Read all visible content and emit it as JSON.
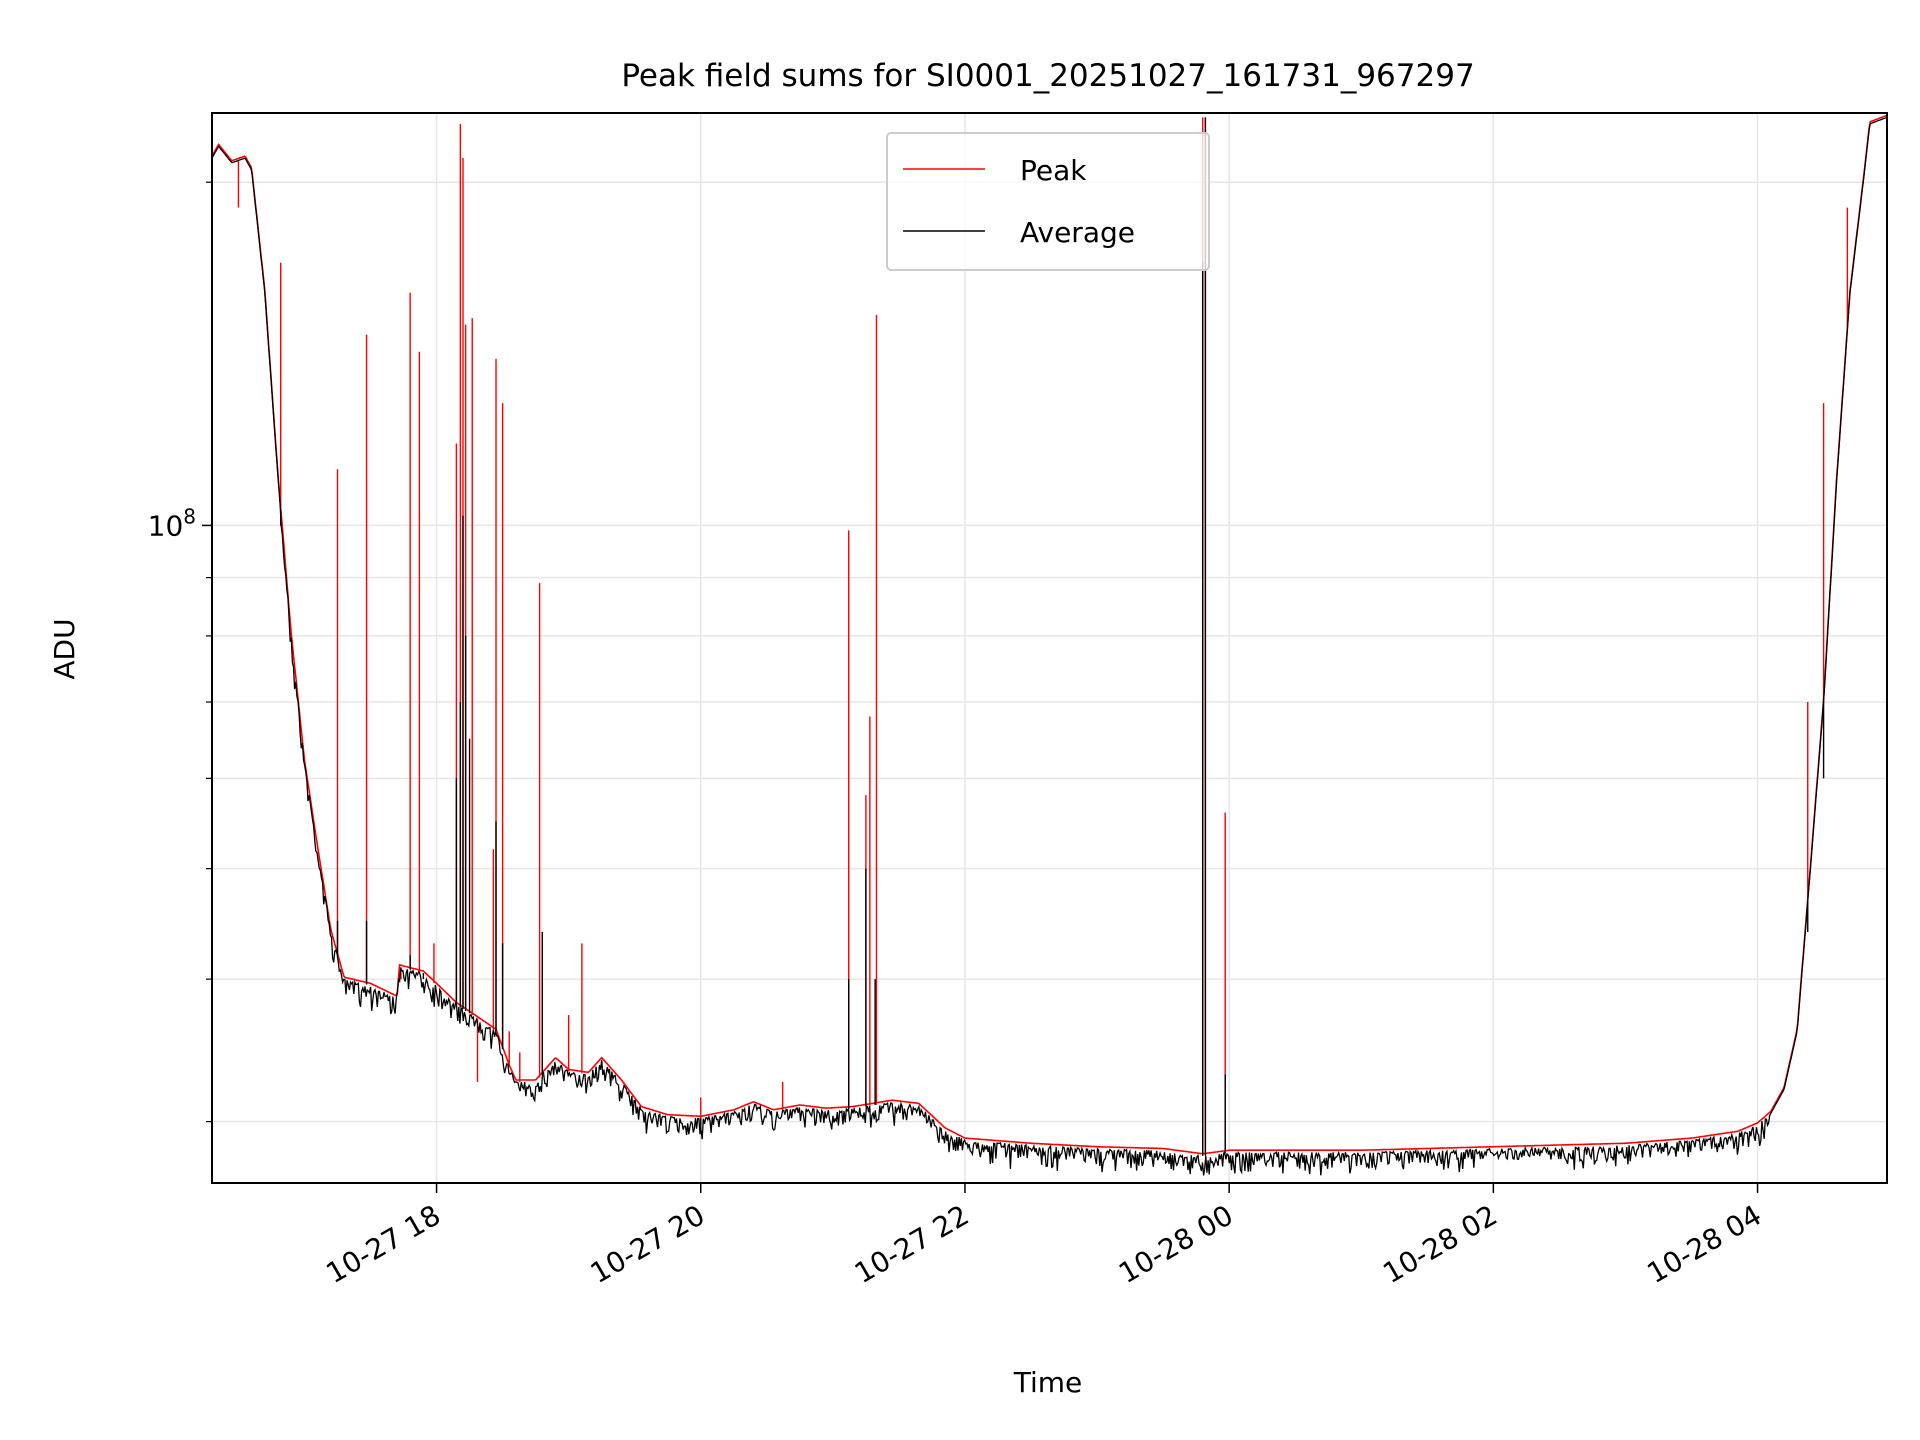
{
  "chart_data": {
    "type": "line",
    "title": "Peak field sums for SI0001_20251027_161731_967297",
    "xlabel": "Time",
    "ylabel": "ADU",
    "yscale": "log",
    "ylim": [
      26500000,
      230000000
    ],
    "xlim": [
      16.3,
      28.98
    ],
    "grid": true,
    "x_unit": "hours since 10-27 00:00",
    "x_ticks": [
      {
        "value": 18,
        "label": "10-27 18"
      },
      {
        "value": 20,
        "label": "10-27 20"
      },
      {
        "value": 22,
        "label": "10-27 22"
      },
      {
        "value": 24,
        "label": "10-28 00"
      },
      {
        "value": 26,
        "label": "10-28 02"
      },
      {
        "value": 28,
        "label": "10-28 04"
      }
    ],
    "y_major_ticks": [
      {
        "value": 100000000,
        "label_base": "10",
        "label_exp": "8"
      }
    ],
    "y_minor_ticks": [
      30000000,
      40000000,
      50000000,
      60000000,
      70000000,
      80000000,
      90000000,
      200000000
    ],
    "legend": {
      "position": "top-center",
      "entries": [
        "Peak",
        "Average"
      ]
    },
    "series": [
      {
        "name": "Average",
        "color": "#000000",
        "baseline": [
          [
            16.3,
            210000000
          ],
          [
            16.35,
            215000000
          ],
          [
            16.45,
            208000000
          ],
          [
            16.55,
            210000000
          ],
          [
            16.6,
            205000000
          ],
          [
            16.7,
            160000000
          ],
          [
            16.8,
            110000000
          ],
          [
            16.9,
            80000000
          ],
          [
            17.0,
            62000000
          ],
          [
            17.1,
            52000000
          ],
          [
            17.2,
            44000000
          ],
          [
            17.3,
            40000000
          ],
          [
            17.5,
            39500000
          ],
          [
            17.7,
            38500000
          ],
          [
            17.72,
            41000000
          ],
          [
            17.9,
            40500000
          ],
          [
            18.05,
            39000000
          ],
          [
            18.15,
            38000000
          ],
          [
            18.3,
            37000000
          ],
          [
            18.45,
            36000000
          ],
          [
            18.55,
            33500000
          ],
          [
            18.6,
            32500000
          ],
          [
            18.75,
            32500000
          ],
          [
            18.9,
            34000000
          ],
          [
            19.0,
            33200000
          ],
          [
            19.15,
            33000000
          ],
          [
            19.25,
            34000000
          ],
          [
            19.4,
            32500000
          ],
          [
            19.55,
            30800000
          ],
          [
            19.75,
            30300000
          ],
          [
            20.0,
            30200000
          ],
          [
            20.25,
            30600000
          ],
          [
            20.4,
            31100000
          ],
          [
            20.55,
            30600000
          ],
          [
            20.75,
            30900000
          ],
          [
            20.95,
            30700000
          ],
          [
            21.15,
            30800000
          ],
          [
            21.3,
            31000000
          ],
          [
            21.45,
            31200000
          ],
          [
            21.65,
            31000000
          ],
          [
            21.85,
            29500000
          ],
          [
            22.0,
            28900000
          ],
          [
            22.5,
            28600000
          ],
          [
            23.0,
            28400000
          ],
          [
            23.5,
            28300000
          ],
          [
            23.8,
            28000000
          ],
          [
            24.0,
            28200000
          ],
          [
            25.0,
            28200000
          ],
          [
            26.0,
            28400000
          ],
          [
            27.0,
            28600000
          ],
          [
            27.5,
            28900000
          ],
          [
            27.85,
            29300000
          ],
          [
            28.0,
            29800000
          ],
          [
            28.1,
            30500000
          ],
          [
            28.2,
            32000000
          ],
          [
            28.3,
            36000000
          ],
          [
            28.4,
            50000000
          ],
          [
            28.5,
            70000000
          ],
          [
            28.6,
            110000000
          ],
          [
            28.7,
            160000000
          ],
          [
            28.8,
            200000000
          ],
          [
            28.85,
            225000000
          ],
          [
            28.98,
            228000000
          ]
        ],
        "spikes": [
          [
            16.82,
            100000000
          ],
          [
            17.25,
            45000000
          ],
          [
            17.47,
            45000000
          ],
          [
            17.8,
            42000000
          ],
          [
            17.9,
            40000000
          ],
          [
            18.15,
            60000000
          ],
          [
            18.18,
            70000000
          ],
          [
            18.2,
            102000000
          ],
          [
            18.22,
            80000000
          ],
          [
            18.25,
            65000000
          ],
          [
            18.45,
            55000000
          ],
          [
            18.5,
            43000000
          ],
          [
            18.8,
            44000000
          ],
          [
            20.0,
            29500000
          ],
          [
            21.12,
            40000000
          ],
          [
            21.25,
            50000000
          ],
          [
            21.32,
            40000000
          ],
          [
            23.8,
            170000000
          ],
          [
            23.82,
            228000000
          ],
          [
            23.97,
            33000000
          ],
          [
            28.38,
            44000000
          ],
          [
            28.5,
            60000000
          ]
        ]
      },
      {
        "name": "Peak",
        "color": "#ff0000",
        "spikes": [
          [
            16.5,
            190000000
          ],
          [
            16.82,
            170000000
          ],
          [
            17.25,
            112000000
          ],
          [
            17.47,
            147000000
          ],
          [
            17.73,
            40000000
          ],
          [
            17.8,
            160000000
          ],
          [
            17.87,
            142000000
          ],
          [
            17.98,
            43000000
          ],
          [
            18.15,
            118000000
          ],
          [
            18.18,
            225000000
          ],
          [
            18.2,
            210000000
          ],
          [
            18.22,
            150000000
          ],
          [
            18.27,
            152000000
          ],
          [
            18.31,
            32500000
          ],
          [
            18.43,
            52000000
          ],
          [
            18.45,
            140000000
          ],
          [
            18.5,
            128000000
          ],
          [
            18.55,
            36000000
          ],
          [
            18.63,
            34500000
          ],
          [
            18.78,
            89000000
          ],
          [
            19.0,
            37200000
          ],
          [
            19.1,
            43000000
          ],
          [
            20.0,
            31500000
          ],
          [
            20.62,
            32500000
          ],
          [
            21.12,
            99000000
          ],
          [
            21.25,
            58000000
          ],
          [
            21.28,
            68000000
          ],
          [
            21.33,
            153000000
          ],
          [
            23.8,
            228000000
          ],
          [
            23.82,
            228000000
          ],
          [
            23.97,
            56000000
          ],
          [
            28.38,
            70000000
          ],
          [
            28.5,
            128000000
          ],
          [
            28.68,
            190000000
          ]
        ]
      }
    ]
  }
}
